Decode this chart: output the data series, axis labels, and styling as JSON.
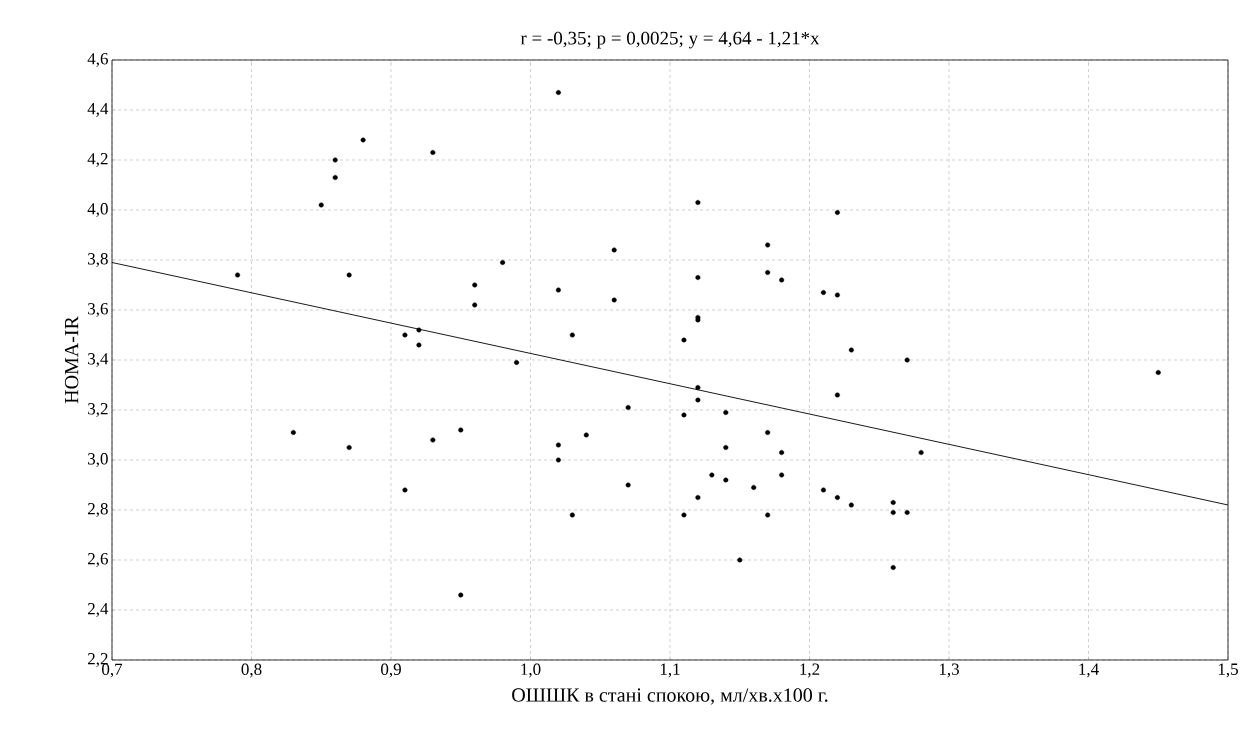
{
  "chart_data": {
    "type": "scatter",
    "title": "r = -0,35; p = 0,0025;  y = 4,64 - 1,21*x",
    "xlabel": "ОШШК в стані спокою, мл/хв.х100 г.",
    "ylabel": "HOMA-IR",
    "series": [
      {
        "color": "#000000",
        "marker": "circle",
        "x": [
          0.79,
          0.83,
          0.85,
          0.86,
          0.86,
          0.87,
          0.87,
          0.88,
          0.91,
          0.91,
          0.92,
          0.92,
          0.93,
          0.93,
          0.95,
          0.95,
          0.96,
          0.96,
          0.98,
          0.99,
          1.02,
          1.02,
          1.02,
          1.02,
          1.03,
          1.03,
          1.04,
          1.06,
          1.06,
          1.07,
          1.07,
          1.11,
          1.11,
          1.11,
          1.12,
          1.12,
          1.12,
          1.12,
          1.12,
          1.12,
          1.12,
          1.13,
          1.14,
          1.14,
          1.14,
          1.15,
          1.16,
          1.17,
          1.17,
          1.17,
          1.17,
          1.18,
          1.18,
          1.18,
          1.21,
          1.21,
          1.22,
          1.22,
          1.22,
          1.22,
          1.23,
          1.23,
          1.26,
          1.26,
          1.26,
          1.27,
          1.27,
          1.28,
          1.45
        ],
        "values": [
          3.74,
          3.11,
          4.02,
          4.13,
          4.2,
          3.74,
          3.05,
          4.28,
          3.5,
          2.88,
          3.52,
          3.46,
          4.23,
          3.08,
          3.12,
          2.46,
          3.7,
          3.62,
          3.79,
          3.39,
          4.47,
          3.68,
          3.06,
          3.0,
          3.5,
          2.78,
          3.1,
          3.84,
          3.64,
          3.21,
          2.9,
          3.48,
          3.18,
          2.78,
          4.03,
          3.73,
          3.57,
          3.56,
          3.29,
          3.24,
          2.85,
          2.94,
          3.19,
          3.05,
          2.92,
          2.6,
          2.89,
          3.86,
          3.75,
          3.11,
          2.78,
          3.72,
          3.03,
          2.94,
          3.67,
          2.88,
          3.99,
          3.66,
          3.26,
          2.85,
          3.44,
          2.82,
          2.83,
          2.79,
          2.57,
          3.4,
          2.79,
          3.03,
          3.35
        ]
      },
      {
        "type": "line",
        "color": "#000000",
        "marker": "none",
        "x": [
          0.7,
          1.5
        ],
        "values": [
          3.79,
          2.82
        ]
      }
    ],
    "xlim": [
      0.7,
      1.5
    ],
    "ylim": [
      2.2,
      4.6
    ],
    "xticks": [
      {
        "value": 0.7,
        "label": "0,7"
      },
      {
        "value": 0.8,
        "label": "0,8"
      },
      {
        "value": 0.9,
        "label": "0,9"
      },
      {
        "value": 1.0,
        "label": "1,0"
      },
      {
        "value": 1.1,
        "label": "1,1"
      },
      {
        "value": 1.2,
        "label": "1,2"
      },
      {
        "value": 1.3,
        "label": "1,3"
      },
      {
        "value": 1.4,
        "label": "1,4"
      },
      {
        "value": 1.5,
        "label": "1,5"
      }
    ],
    "yticks": [
      {
        "value": 2.2,
        "label": "2,2"
      },
      {
        "value": 2.4,
        "label": "2,4"
      },
      {
        "value": 2.6,
        "label": "2,6"
      },
      {
        "value": 2.8,
        "label": "2,8"
      },
      {
        "value": 3.0,
        "label": "3,0"
      },
      {
        "value": 3.2,
        "label": "3,2"
      },
      {
        "value": 3.4,
        "label": "3,4"
      },
      {
        "value": 3.6,
        "label": "3,6"
      },
      {
        "value": 3.8,
        "label": "3,8"
      },
      {
        "value": 4.0,
        "label": "4,0"
      },
      {
        "value": 4.2,
        "label": "4,2"
      },
      {
        "value": 4.4,
        "label": "4,4"
      },
      {
        "value": 4.6,
        "label": "4,6"
      }
    ],
    "grid": true
  }
}
